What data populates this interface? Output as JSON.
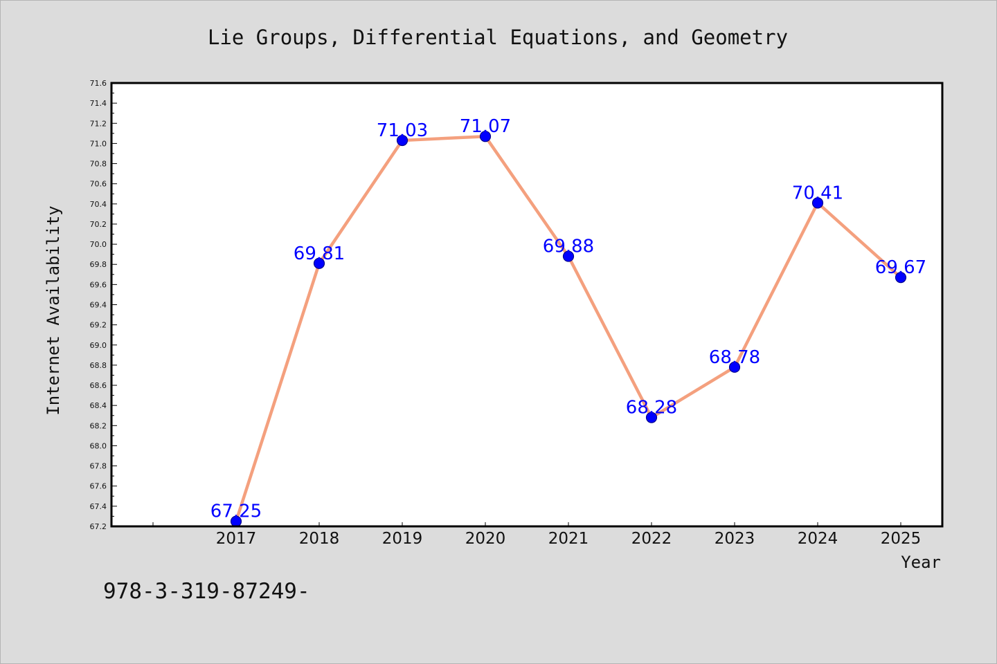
{
  "chart_data": {
    "type": "line",
    "title": "Lie Groups, Differential Equations, and Geometry",
    "xlabel": "Year",
    "ylabel": "Internet Availability",
    "categories": [
      "2017",
      "2018",
      "2019",
      "2020",
      "2021",
      "2022",
      "2023",
      "2024",
      "2025"
    ],
    "series": [
      {
        "values": [
          67.25,
          69.81,
          71.03,
          71.07,
          69.88,
          68.28,
          68.78,
          70.41,
          69.67
        ],
        "data_labels": [
          "67.25",
          "69.81",
          "71.03",
          "71.07",
          "69.88",
          "68.28",
          "68.78",
          "70.41",
          "69.67"
        ]
      }
    ],
    "ylim": [
      67.2,
      71.6
    ],
    "yticks": [
      "67.2",
      "67.4",
      "67.6",
      "67.8",
      "68.0",
      "68.2",
      "68.4",
      "68.6",
      "68.8",
      "69.0",
      "69.2",
      "69.4",
      "69.6",
      "69.8",
      "70.0",
      "70.2",
      "70.4",
      "70.6",
      "70.8",
      "71.0",
      "71.2",
      "71.4",
      "71.6"
    ],
    "grid": false,
    "legend": "none",
    "colors": {
      "line": "#f4a07e",
      "marker": "#0000ff",
      "marker_edge": "#00008b",
      "data_label": "#0000ff",
      "background": "#dcdcdc",
      "plot_background": "#ffffff"
    }
  },
  "footer": {
    "text": "978-3-319-87249-"
  }
}
